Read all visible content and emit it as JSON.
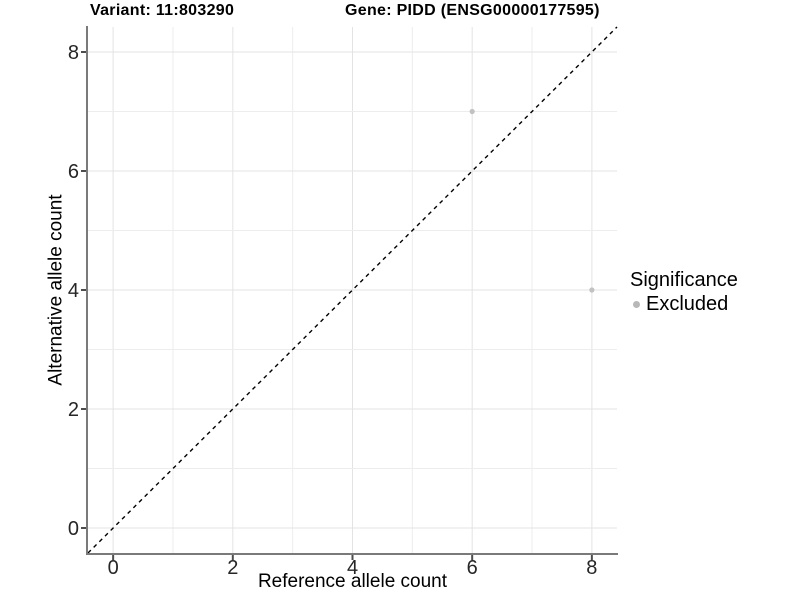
{
  "chart_data": {
    "type": "scatter",
    "title_left": "Variant: 11:803290",
    "title_right": "Gene: PIDD (ENSG00000177595)",
    "xlabel": "Reference allele count",
    "ylabel": "Alternative allele count",
    "xlim": [
      -0.42,
      8.42
    ],
    "ylim": [
      -0.42,
      8.42
    ],
    "x_ticks": [
      0,
      2,
      4,
      6,
      8
    ],
    "y_ticks": [
      0,
      2,
      4,
      6,
      8
    ],
    "grid": "on",
    "points": [
      {
        "x": 6,
        "y": 7,
        "significance": "Excluded"
      },
      {
        "x": 8,
        "y": 4,
        "significance": "Excluded"
      }
    ],
    "point_color": "#c2c2c2",
    "reference_line": {
      "type": "identity",
      "style": "dashed",
      "color": "#000000"
    },
    "legend": {
      "title": "Significance",
      "position": "right",
      "items": [
        {
          "label": "Excluded",
          "color": "#b8b8b8"
        }
      ]
    },
    "colors": {
      "background": "#ffffff",
      "grid_major": "#e3e3e3",
      "grid_minor": "#ededed",
      "axis_line": "#7a7a7a",
      "tick": "#4d4d4d",
      "text": "#000000"
    }
  }
}
